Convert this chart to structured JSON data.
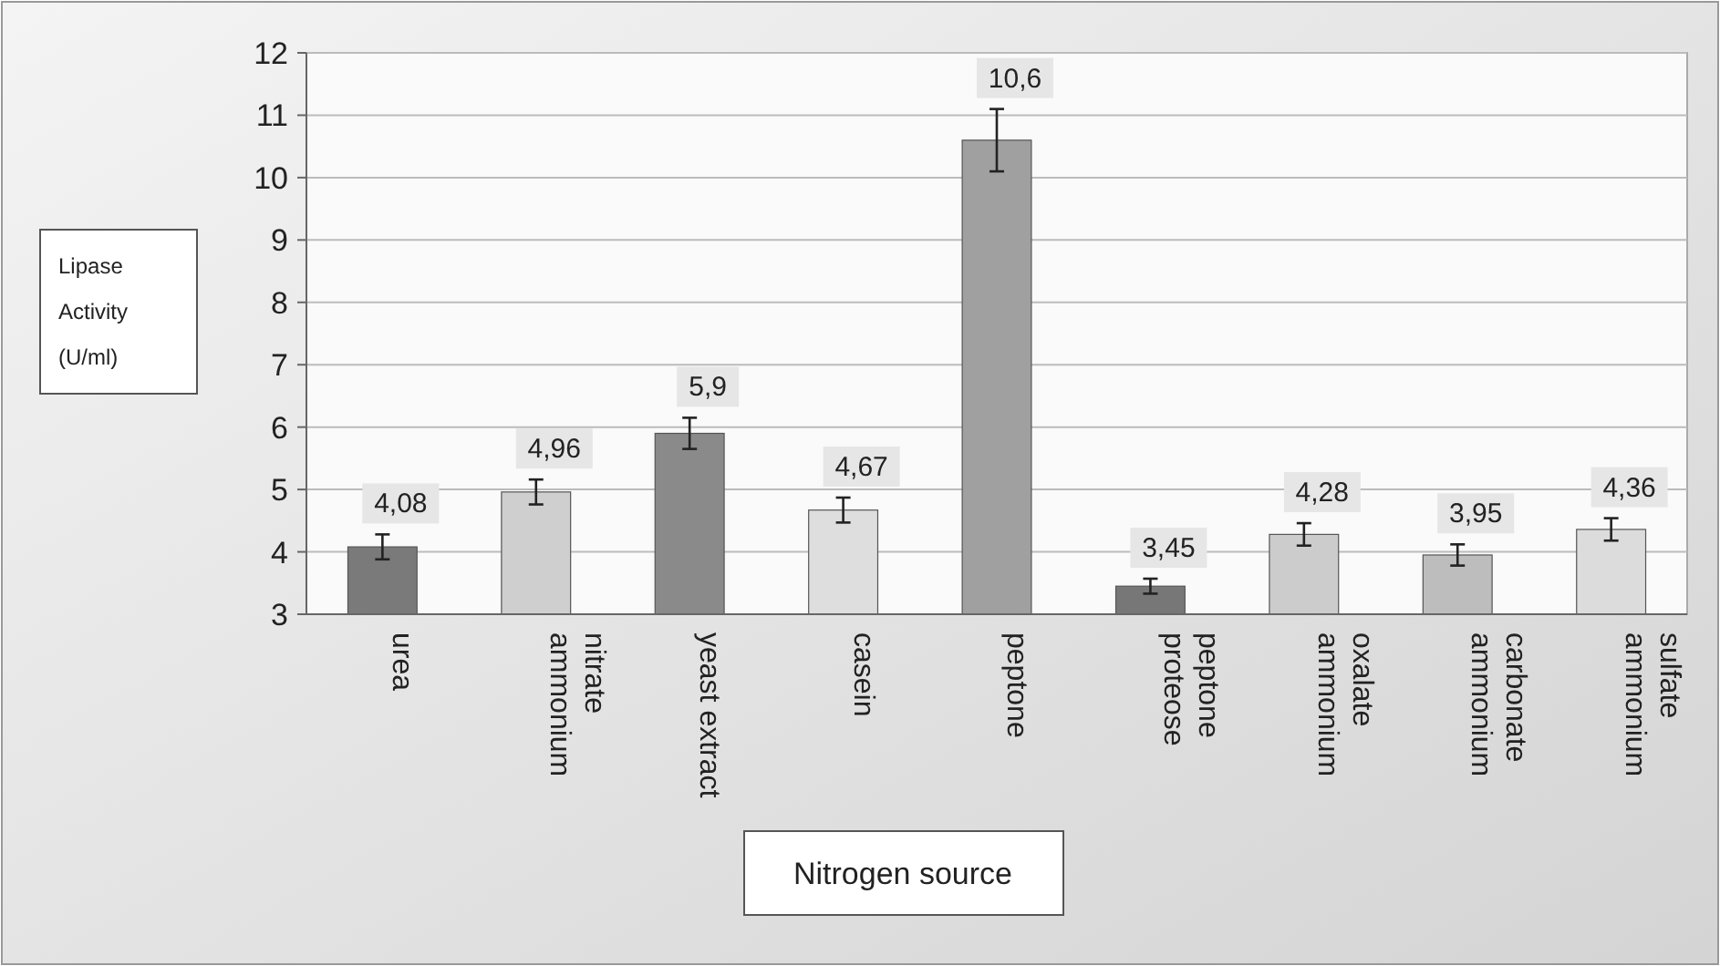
{
  "chart_data": {
    "type": "bar",
    "xlabel": "Nitrogen source",
    "annotations": [
      "Lipase Activity (U/ml)"
    ],
    "categories": [
      "urea",
      "ammonium nitrate",
      "yeast extract",
      "casein",
      "peptone",
      "proteose peptone",
      "ammonium oxalate",
      "ammonium carbonate",
      "ammonium sulfate"
    ],
    "values": [
      4.08,
      4.96,
      5.9,
      4.67,
      10.6,
      3.45,
      4.28,
      3.95,
      4.36
    ],
    "value_labels": [
      "4,08",
      "4,96",
      "5,9",
      "4,67",
      "10,6",
      "3,45",
      "4,28",
      "3,95",
      "4,36"
    ],
    "errors": [
      0.2,
      0.2,
      0.25,
      0.2,
      0.5,
      0.12,
      0.18,
      0.17,
      0.18
    ],
    "colors": [
      "#7a7a7a",
      "#cfcfcf",
      "#8a8a8a",
      "#dedede",
      "#a0a0a0",
      "#777777",
      "#cccccc",
      "#bdbdbd",
      "#dcdcdc"
    ],
    "ylim": [
      3,
      12
    ],
    "yticks": [
      3,
      4,
      5,
      6,
      7,
      8,
      9,
      10,
      11,
      12
    ],
    "grid": "y"
  }
}
